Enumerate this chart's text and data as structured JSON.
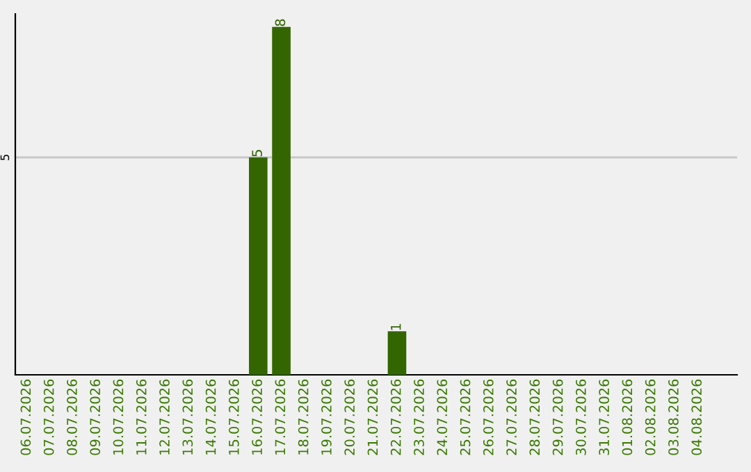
{
  "chart_data": {
    "type": "bar",
    "categories": [
      "06.07.2026",
      "07.07.2026",
      "08.07.2026",
      "09.07.2026",
      "10.07.2026",
      "11.07.2026",
      "12.07.2026",
      "13.07.2026",
      "14.07.2026",
      "15.07.2026",
      "16.07.2026",
      "17.07.2026",
      "18.07.2026",
      "19.07.2026",
      "20.07.2026",
      "21.07.2026",
      "22.07.2026",
      "23.07.2026",
      "24.07.2026",
      "25.07.2026",
      "26.07.2026",
      "27.07.2026",
      "28.07.2026",
      "29.07.2026",
      "30.07.2026",
      "31.07.2026",
      "01.08.2026",
      "02.08.2026",
      "03.08.2026",
      "04.08.2026"
    ],
    "values": [
      0,
      0,
      0,
      0,
      0,
      0,
      0,
      0,
      0,
      0,
      5,
      8,
      0,
      0,
      0,
      0,
      1,
      0,
      0,
      0,
      0,
      0,
      0,
      0,
      0,
      0,
      0,
      0,
      0,
      0
    ],
    "value_labels": [
      null,
      null,
      null,
      null,
      null,
      null,
      null,
      null,
      null,
      null,
      "5",
      "8",
      null,
      null,
      null,
      null,
      "1",
      null,
      null,
      null,
      null,
      null,
      null,
      null,
      null,
      null,
      null,
      null,
      null,
      null
    ],
    "color": "#336600",
    "ylim": [
      0,
      8.3
    ],
    "yticks": [
      5
    ],
    "grid": "y"
  }
}
